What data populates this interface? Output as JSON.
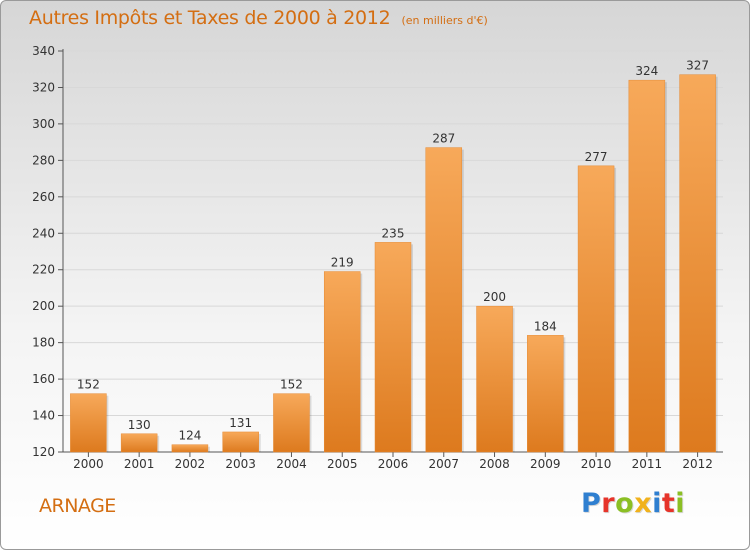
{
  "title": "Autres Impôts et Taxes de 2000 à 2012",
  "subtitle": "(en milliers d'€)",
  "commune": "ARNAGE",
  "logo": {
    "text": "Proxiti",
    "letters": [
      {
        "ch": "P",
        "color": "#2f7fd0"
      },
      {
        "ch": "r",
        "color": "#e6342a"
      },
      {
        "ch": "o",
        "color": "#8bbf24"
      },
      {
        "ch": "x",
        "color": "#f1b21c"
      },
      {
        "ch": "i",
        "color": "#2f7fd0"
      },
      {
        "ch": "t",
        "color": "#e6342a"
      },
      {
        "ch": "i",
        "color": "#8bbf24"
      }
    ]
  },
  "colors": {
    "accent": "#d46e12",
    "bar_top": "#f7a95a",
    "bar_bottom": "#dd7a1e",
    "grid": "#d8d8d8",
    "axis": "#555555"
  },
  "chart_data": {
    "type": "bar",
    "categories": [
      "2000",
      "2001",
      "2002",
      "2003",
      "2004",
      "2005",
      "2006",
      "2007",
      "2008",
      "2009",
      "2010",
      "2011",
      "2012"
    ],
    "values": [
      152,
      130,
      124,
      131,
      152,
      219,
      235,
      287,
      200,
      184,
      277,
      324,
      327
    ],
    "ylim": [
      120,
      340
    ],
    "yticks": [
      120,
      140,
      160,
      180,
      200,
      220,
      240,
      260,
      280,
      300,
      320,
      340
    ],
    "grid": true,
    "legend": "none",
    "xlabel": "",
    "ylabel": ""
  }
}
